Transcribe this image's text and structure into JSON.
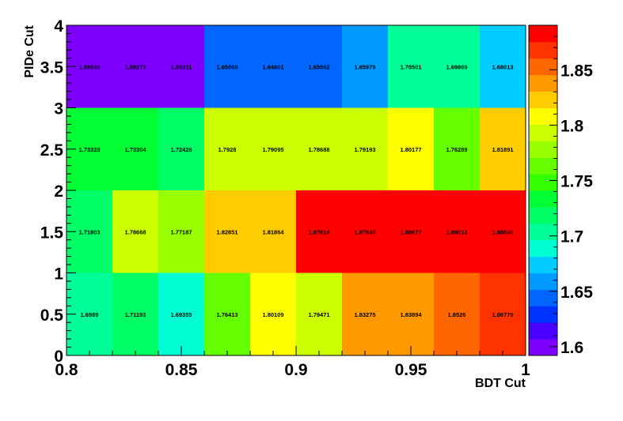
{
  "chart_data": {
    "type": "heatmap",
    "title": "",
    "xlabel": "BDT Cut",
    "ylabel": "PIDe Cut",
    "xlim": [
      0.8,
      1.0
    ],
    "ylim": [
      0,
      4
    ],
    "x_bin_edges": [
      0.8,
      0.82,
      0.84,
      0.86,
      0.88,
      0.9,
      0.92,
      0.94,
      0.96,
      0.98,
      1.0
    ],
    "y_bin_edges": [
      0,
      1,
      2,
      3,
      4
    ],
    "x_tick_values": [
      0.8,
      0.85,
      0.9,
      0.95,
      1.0
    ],
    "x_tick_labels": [
      "0.8",
      "0.85",
      "0.9",
      "0.95",
      "1"
    ],
    "y_tick_values": [
      0,
      0.5,
      1,
      1.5,
      2,
      2.5,
      3,
      3.5,
      4
    ],
    "y_tick_labels": [
      "0",
      "0.5",
      "1",
      "1.5",
      "2",
      "2.5",
      "3",
      "3.5",
      "4"
    ],
    "rows": [
      {
        "y_range": [
          0,
          1
        ],
        "values": [
          1.6989,
          1.71193,
          1.69355,
          1.76413,
          1.80109,
          1.79471,
          1.83275,
          1.83894,
          1.8526,
          1.86779
        ],
        "labels": [
          "1.6989",
          "1.71193",
          "1.69355",
          "1.76413",
          "1.80109",
          "1.79471",
          "1.83275",
          "1.83894",
          "1.8526",
          "1.86779"
        ]
      },
      {
        "y_range": [
          1,
          2
        ],
        "values": [
          1.71803,
          1.78668,
          1.77187,
          1.82851,
          1.81864,
          1.87824,
          1.87648,
          1.88677,
          1.89012,
          1.88846
        ],
        "labels": [
          "1.71803",
          "1.78668",
          "1.77187",
          "1.82851",
          "1.81864",
          "1.87824",
          "1.87648",
          "1.88677",
          "1.89012",
          "1.88846"
        ]
      },
      {
        "y_range": [
          2,
          3
        ],
        "values": [
          1.73328,
          1.73304,
          1.72426,
          1.7928,
          1.79095,
          1.78688,
          1.79193,
          1.80177,
          1.76289,
          1.81891
        ],
        "labels": [
          "1.73328",
          "1.73304",
          "1.72426",
          "1.7928",
          "1.79095",
          "1.78688",
          "1.79193",
          "1.80177",
          "1.76289",
          "1.81891"
        ]
      },
      {
        "y_range": [
          3,
          4
        ],
        "values": [
          1.59946,
          1.59273,
          1.59211,
          1.65068,
          1.64801,
          1.65062,
          1.65979,
          1.70501,
          1.69869,
          1.68013
        ],
        "labels": [
          "1.59946",
          "1.59273",
          "1.59211",
          "1.65068",
          "1.64801",
          "1.65062",
          "1.65979",
          "1.70501",
          "1.69869",
          "1.68013"
        ]
      }
    ],
    "colorbar": {
      "range": [
        1.59211,
        1.89012
      ],
      "tick_values": [
        1.6,
        1.65,
        1.7,
        1.75,
        1.8,
        1.85
      ],
      "tick_labels": [
        "1.6",
        "1.65",
        "1.7",
        "1.75",
        "1.8",
        "1.85"
      ],
      "palette": [
        "#7d00ff",
        "#4c00ff",
        "#0033ff",
        "#0066ff",
        "#0099ff",
        "#00ccff",
        "#00ffd5",
        "#00ff99",
        "#00ff66",
        "#00ff33",
        "#33ff00",
        "#66ff00",
        "#99ff00",
        "#ccff00",
        "#ffff00",
        "#ffcc00",
        "#ff9900",
        "#ff6600",
        "#ff3300",
        "#ff0000"
      ]
    }
  }
}
